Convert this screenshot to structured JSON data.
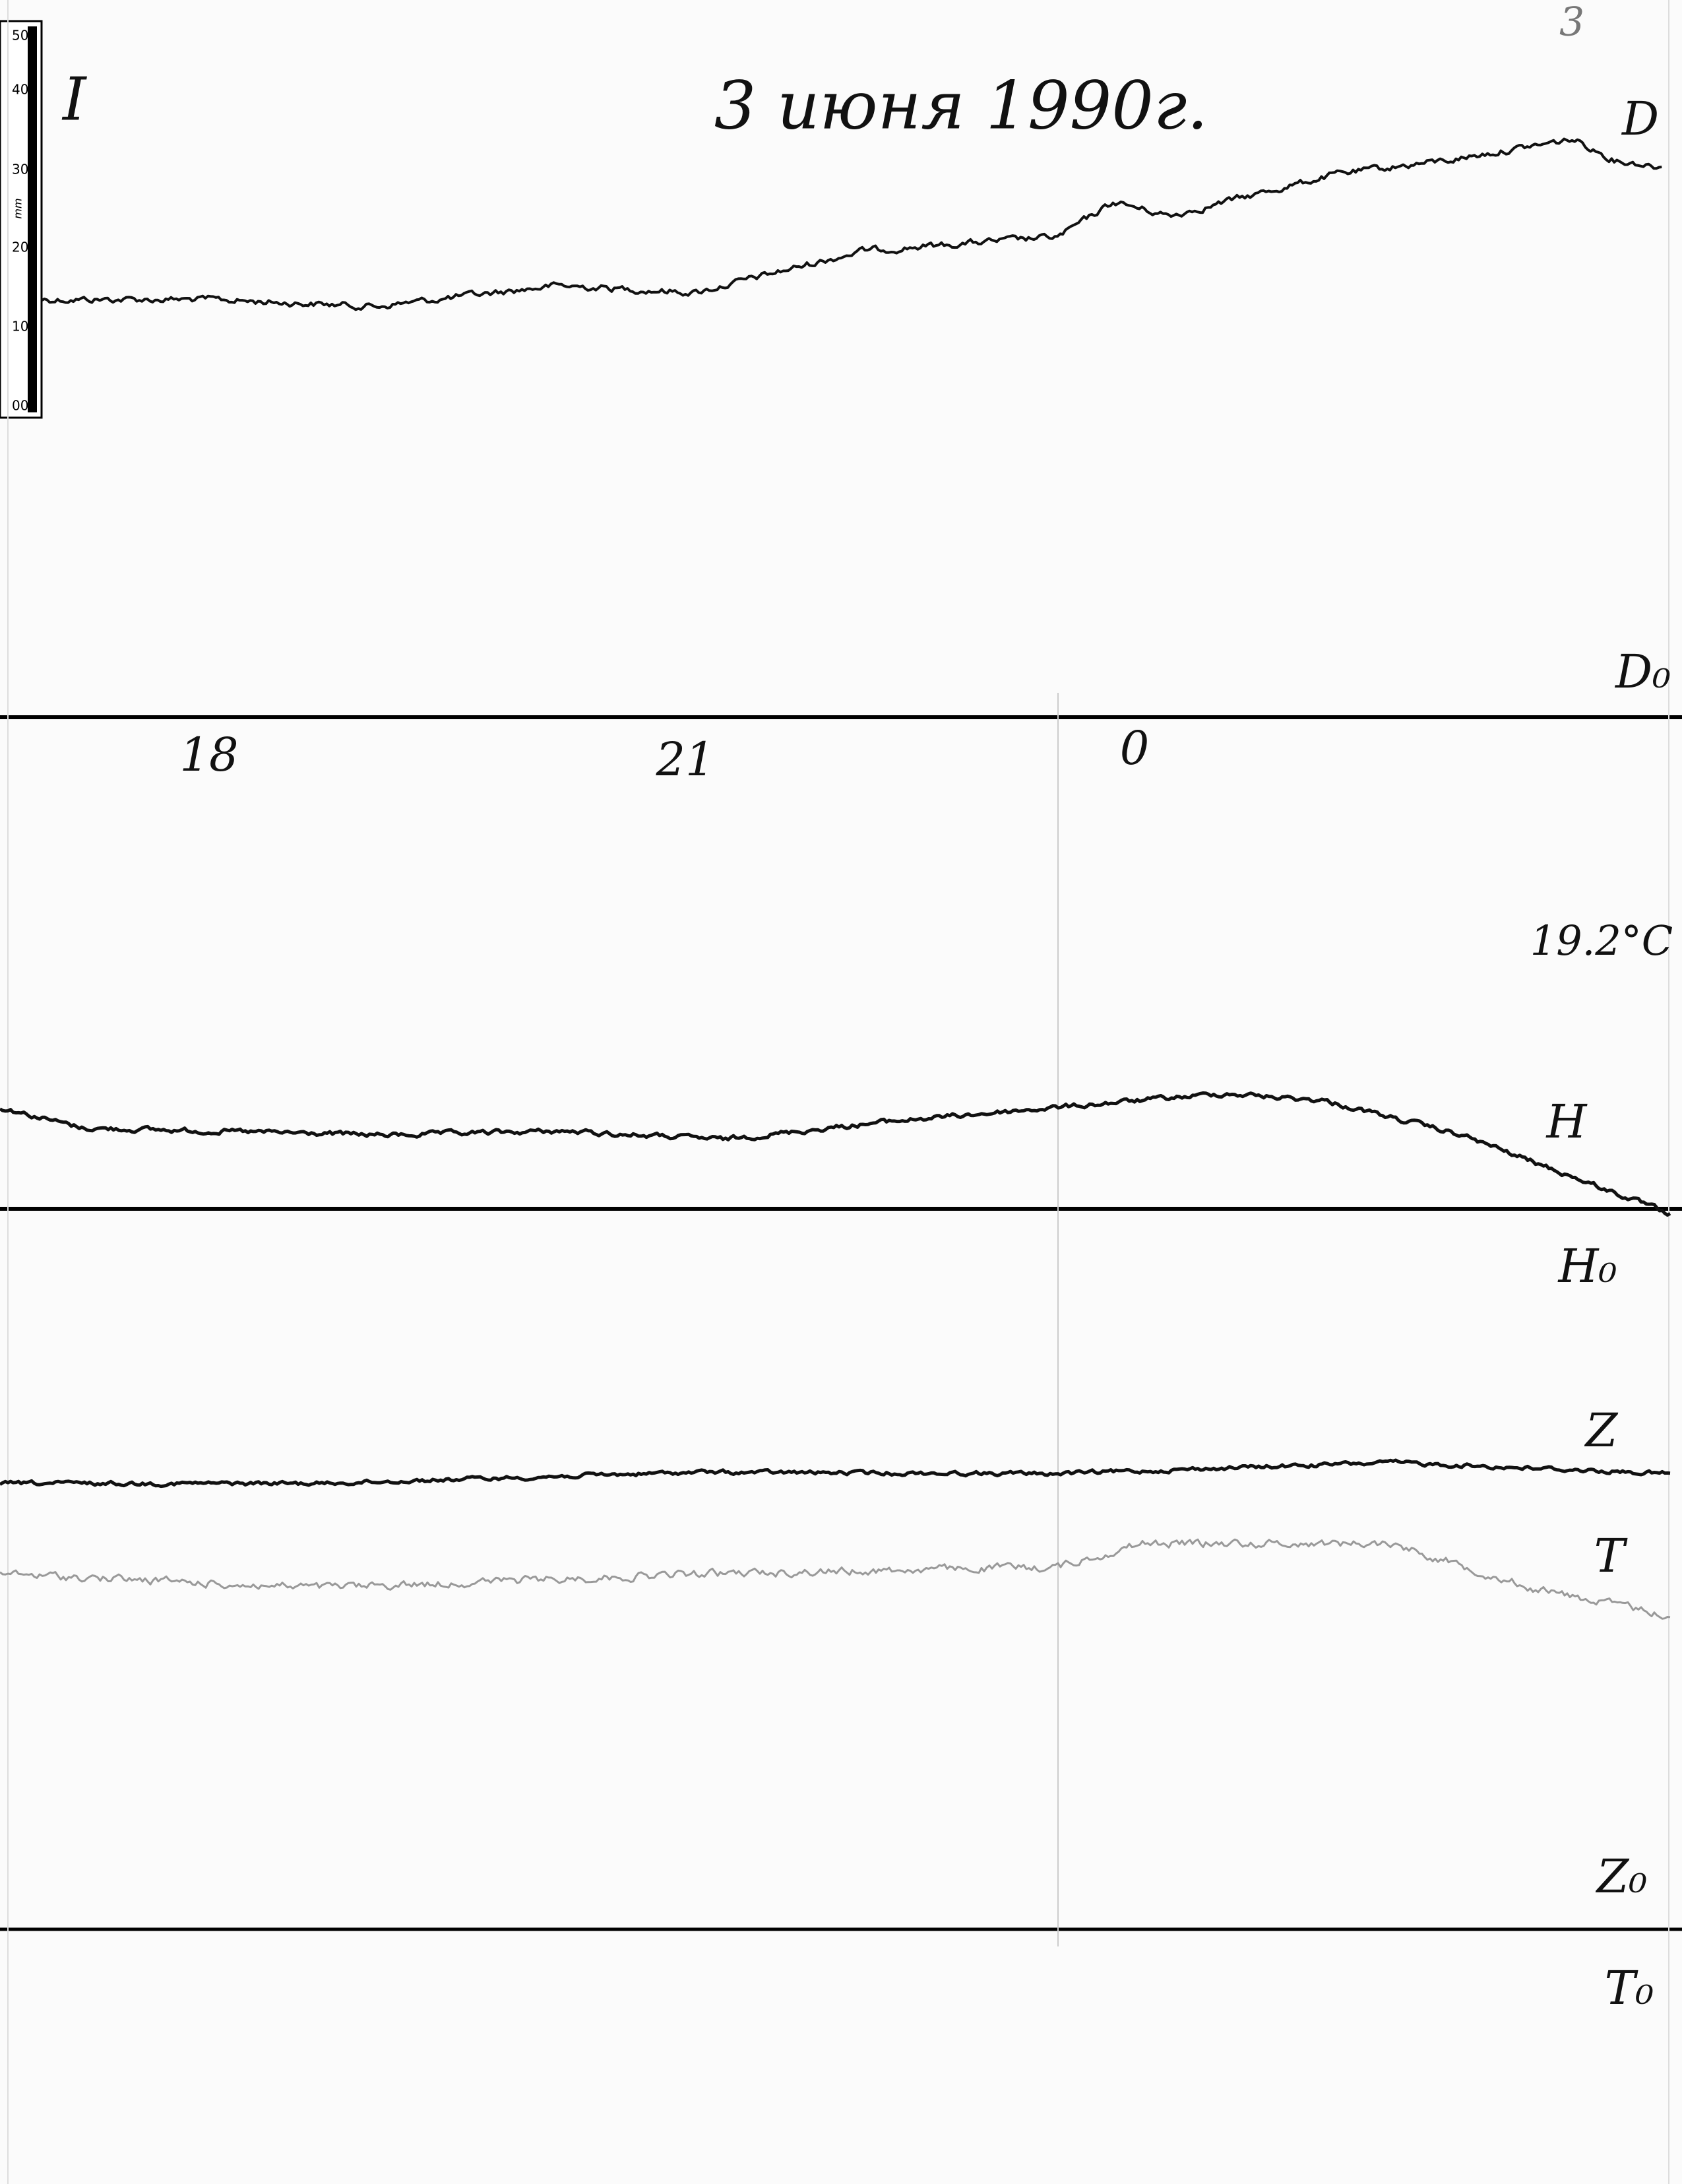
{
  "ruler": {
    "ticks": [
      "50",
      "40",
      "30",
      "20",
      "10",
      "00"
    ],
    "unit": "mm"
  },
  "header": {
    "sheet": "I",
    "title": "3 июня 1990г.",
    "page_number": "3"
  },
  "labels": {
    "d": "D",
    "d0": "D₀",
    "temperature": "19.2°C",
    "h": "H",
    "h0": "H₀",
    "z": "Z",
    "t": "T",
    "z0": "Z₀",
    "t0": "T₀"
  },
  "time_axis": [
    "18",
    "21",
    "0"
  ]
}
